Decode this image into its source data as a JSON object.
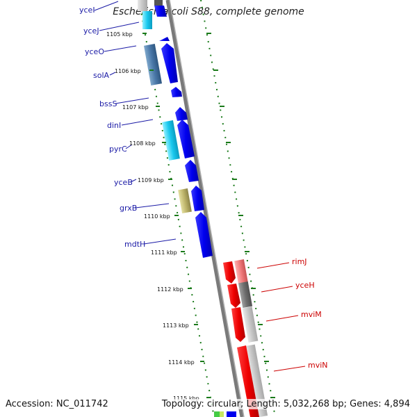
{
  "title": "Escherichia coli S88, complete genome",
  "footer": {
    "accession": "Accession: NC_011742",
    "summary": "Topology: circular; Length: 5,032,268 bp; Genes: 4,894"
  },
  "colors": {
    "forward_arrow": "#0000ee",
    "reverse_arrow": "#ee0000",
    "forward_label": "#1a1aa6",
    "reverse_label": "#cc0000",
    "backbone": "#808080",
    "tick": "#1a7a1a"
  },
  "ticks": [
    "1105 kbp",
    "1106 kbp",
    "1107 kbp",
    "1108 kbp",
    "1109 kbp",
    "1110 kbp",
    "1111 kbp",
    "1112 kbp",
    "1113 kbp",
    "1114 kbp",
    "1115 kbp"
  ],
  "forward_genes": [
    "yceI",
    "yceJ",
    "yceO",
    "solA",
    "bssS",
    "dinI",
    "pyrC",
    "yceB",
    "grxB",
    "mdtH"
  ],
  "reverse_genes": [
    "rimJ",
    "yceH",
    "mviM",
    "mviN"
  ]
}
